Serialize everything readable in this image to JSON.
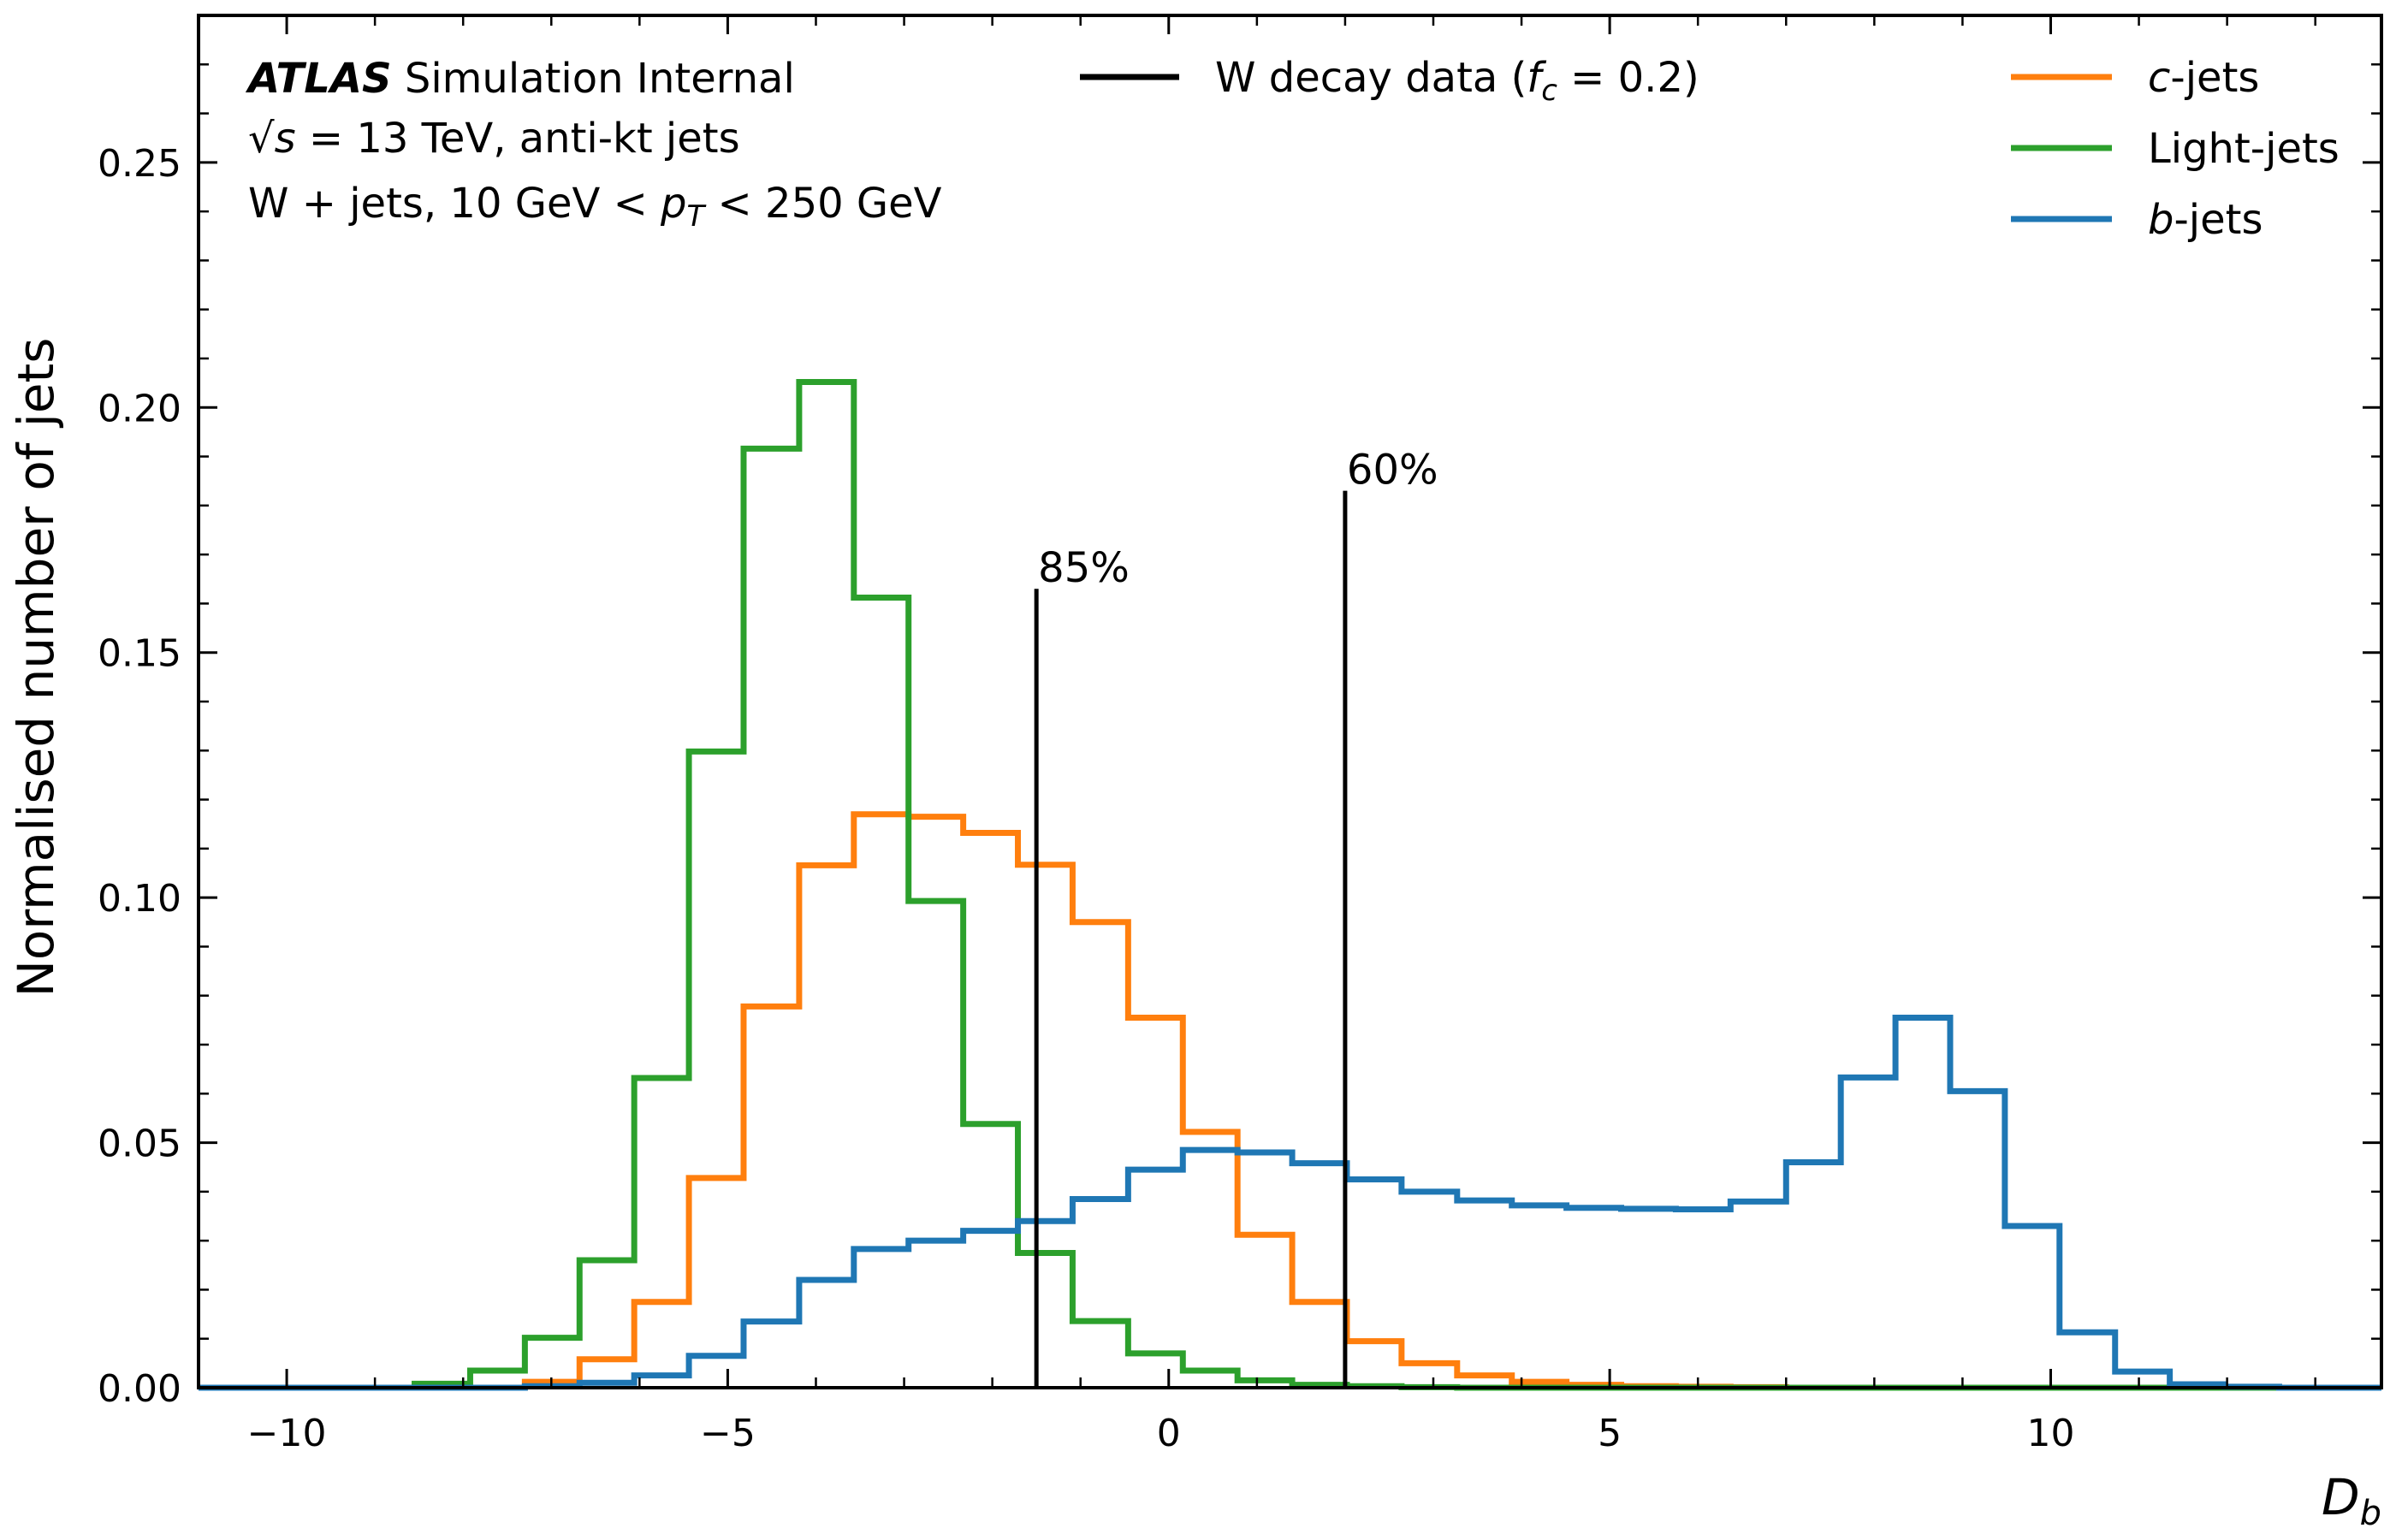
{
  "chart_data": {
    "type": "histogram",
    "xlabel": "D_b",
    "ylabel": "Normalised number of jets",
    "xlim": [
      -11,
      13.75
    ],
    "ylim": [
      0,
      0.28
    ],
    "xticks": [
      -10,
      -5,
      0,
      5,
      10
    ],
    "xtick_labels": [
      "−10",
      "−5",
      "0",
      "5",
      "10"
    ],
    "yticks": [
      0.0,
      0.05,
      0.1,
      0.15,
      0.2,
      0.25
    ],
    "ytick_labels": [
      "0.00",
      "0.05",
      "0.10",
      "0.15",
      "0.20",
      "0.25"
    ],
    "minor_x_step": 1,
    "minor_y_step": 0.01,
    "bin_edges": [
      -11.03,
      -10.41,
      -9.79,
      -9.17,
      -8.55,
      -7.92,
      -7.3,
      -6.68,
      -6.06,
      -5.44,
      -4.82,
      -4.19,
      -3.57,
      -2.95,
      -2.33,
      -1.71,
      -1.09,
      -0.46,
      0.16,
      0.78,
      1.4,
      2.02,
      2.64,
      3.27,
      3.89,
      4.51,
      5.13,
      5.75,
      6.37,
      7.0,
      7.62,
      8.24,
      8.86,
      9.48,
      10.1,
      10.73,
      11.35,
      11.97,
      12.59,
      13.21,
      13.83
    ],
    "series": [
      {
        "name": "c-jets",
        "color": "#ff7f0e",
        "values": [
          0,
          0,
          0,
          0,
          0,
          0,
          0.0012,
          0.0058,
          0.0175,
          0.0428,
          0.0778,
          0.1066,
          0.117,
          0.1165,
          0.1132,
          0.1067,
          0.095,
          0.0755,
          0.0522,
          0.0312,
          0.0175,
          0.0095,
          0.005,
          0.0025,
          0.0012,
          0.0006,
          0.0003,
          0.0002,
          0.0001,
          0,
          0,
          0,
          0,
          0,
          0,
          0,
          0,
          0,
          0,
          0
        ]
      },
      {
        "name": "Light-jets",
        "color": "#2ca02c",
        "values": [
          0,
          0,
          0,
          0,
          0.0008,
          0.0035,
          0.0102,
          0.026,
          0.0632,
          0.1298,
          0.1916,
          0.2052,
          0.1612,
          0.0993,
          0.0538,
          0.0275,
          0.0136,
          0.007,
          0.0035,
          0.0015,
          0.0006,
          0.0003,
          0.0001,
          0,
          0,
          0,
          0,
          0,
          0,
          0,
          0,
          0,
          0,
          0,
          0,
          0,
          0,
          0,
          0,
          0
        ]
      },
      {
        "name": "b-jets",
        "color": "#1f77b4",
        "values": [
          0,
          0,
          0,
          0,
          0,
          0,
          0.0003,
          0.001,
          0.0025,
          0.0065,
          0.0135,
          0.022,
          0.0283,
          0.03,
          0.032,
          0.034,
          0.0385,
          0.0445,
          0.0485,
          0.048,
          0.0458,
          0.0425,
          0.04,
          0.0382,
          0.0372,
          0.0367,
          0.0365,
          0.0364,
          0.038,
          0.046,
          0.0633,
          0.0755,
          0.0605,
          0.033,
          0.0113,
          0.0033,
          0.0007,
          0.0002,
          0,
          0
        ]
      }
    ],
    "working_points": [
      {
        "label": "85%",
        "x": -1.5,
        "ymax": 0.163
      },
      {
        "label": "60%",
        "x": 2.0,
        "ymax": 0.183
      }
    ],
    "legend": {
      "center": {
        "label": "W decay data (",
        "italic": "f",
        "sub": "c",
        "rest": " = 0.2)"
      },
      "right": [
        {
          "italic": "c",
          "rest": "-jets",
          "color": "#ff7f0e"
        },
        {
          "italic": "",
          "rest": "Light-jets",
          "color": "#2ca02c"
        },
        {
          "italic": "b",
          "rest": "-jets",
          "color": "#1f77b4"
        }
      ]
    },
    "info_text": {
      "atlas": "ATLAS",
      "atlas_rest": " Simulation Internal",
      "line2_pre": "√",
      "line2_s": "s",
      "line2_rest": " = 13 TeV, anti-kt jets",
      "line3_pre": " W + jets, 10 GeV  < ",
      "line3_p": "p",
      "line3_sub": "T",
      "line3_rest": " < 250 GeV"
    },
    "grid": false
  }
}
